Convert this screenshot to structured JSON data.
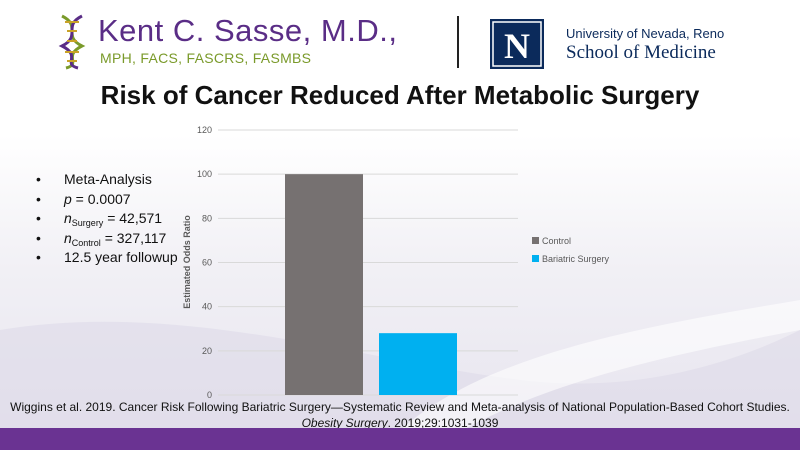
{
  "header": {
    "brand_name": "Kent C. Sasse, M.D.,",
    "brand_credentials": "MPH, FACS, FASCRS, FASMBS",
    "unr_university": "University of Nevada, Reno",
    "unr_school": "School of Medicine",
    "unr_logo_letter": "N"
  },
  "slide_title": "Risk of Cancer Reduced After Metabolic Surgery",
  "bullets": {
    "b1": "Meta-Analysis",
    "b2_var": "p",
    "b2_rest": " = 0.0007",
    "b3_var": "n",
    "b3_sub": "Surgery",
    "b3_rest": " = 42,571",
    "b4_var": "n",
    "b4_sub": "Control",
    "b4_rest": " = 327,117",
    "b5": "12.5 year followup"
  },
  "citation": {
    "line1": "Wiggins et al. 2019. Cancer Risk Following Bariatric Surgery—Systematic Review and Meta-analysis of National Population-Based Cohort Studies.",
    "journal": "Obesity Surgery",
    "line2_rest": ". 2019;29:1031-1039"
  },
  "chart_data": {
    "type": "bar",
    "title": "",
    "ylabel": "Estimated Odds Ratio",
    "xlabel": "",
    "ylim": [
      0,
      120
    ],
    "yticks": [
      0,
      20,
      40,
      60,
      80,
      100,
      120
    ],
    "grid": true,
    "legend_position": "right",
    "series": [
      {
        "name": "Control",
        "value": 100,
        "color": "#767171"
      },
      {
        "name": "Bariatric Surgery",
        "value": 28,
        "color": "#00b0f0"
      }
    ]
  },
  "colors": {
    "brand_purple": "#5a2d86",
    "brand_green": "#7a9a2a",
    "unr_navy": "#0b2a5b",
    "footer_purple": "#6a3392"
  }
}
